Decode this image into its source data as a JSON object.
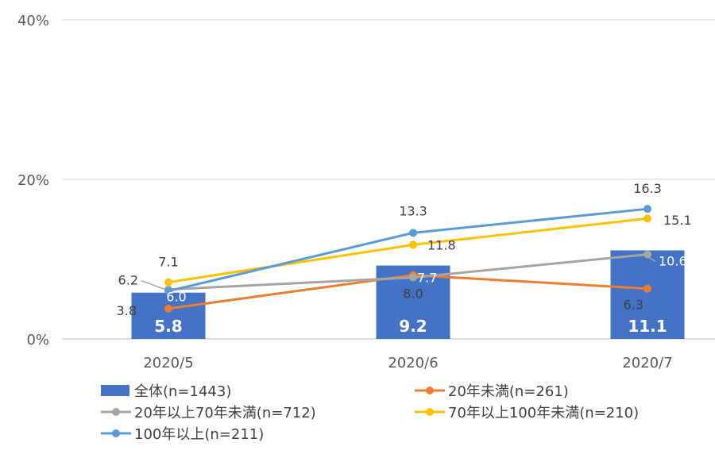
{
  "chart_data": {
    "type": "bar",
    "categories": [
      "2020/5",
      "2020/6",
      "2020/7"
    ],
    "ylim": [
      0,
      40
    ],
    "yticks": [
      "0%",
      "20%",
      "40%"
    ],
    "grid": true,
    "legend_position": "bottom",
    "bar_series": {
      "name": "全体(n=1443)",
      "color": "#4472C4",
      "values": [
        5.8,
        9.2,
        11.1
      ],
      "labels": [
        "5.8",
        "9.2",
        "11.1"
      ]
    },
    "series": [
      {
        "name": "20年未満(n=261)",
        "color": "#ED7D31",
        "values": [
          3.8,
          8.0,
          6.3
        ],
        "labels": [
          "3.8",
          "8.0",
          "6.3"
        ]
      },
      {
        "name": "20年以上70年未満(n=712)",
        "color": "#A5A5A5",
        "values": [
          6.2,
          7.7,
          10.6
        ],
        "labels": [
          "6.2",
          "7.7",
          "10.6"
        ]
      },
      {
        "name": "70年以上100年未満(n=210)",
        "color": "#FFC000",
        "values": [
          7.1,
          11.8,
          15.1
        ],
        "labels": [
          "7.1",
          "11.8",
          "15.1"
        ]
      },
      {
        "name": "100年以上(n=211)",
        "color": "#5B9BD5",
        "values": [
          6.0,
          13.3,
          16.3
        ],
        "labels": [
          "6.0",
          "13.3",
          "16.3"
        ]
      }
    ]
  }
}
